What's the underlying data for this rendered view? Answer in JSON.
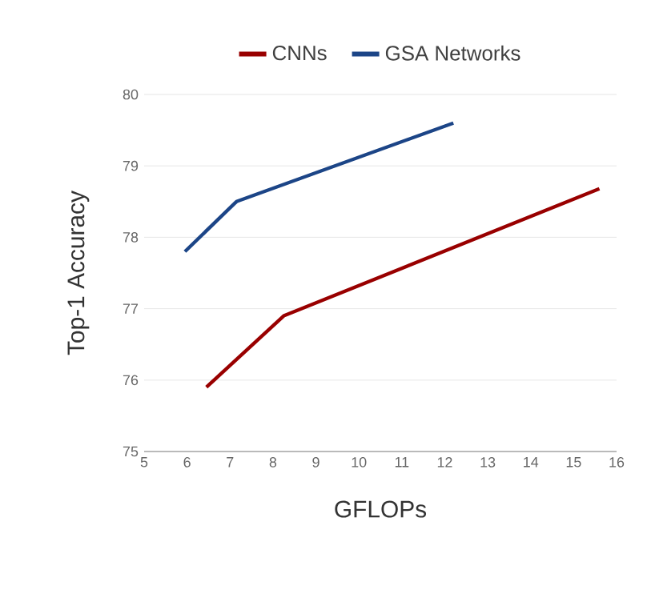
{
  "chart_data": {
    "type": "line",
    "xlabel": "GFLOPs",
    "ylabel": "Top-1 Accuracy",
    "series": [
      {
        "name": "CNNs",
        "color": "#990000",
        "x": [
          6.45,
          8.25,
          15.6
        ],
        "values": [
          75.9,
          76.9,
          78.68
        ]
      },
      {
        "name": "GSA Networks",
        "color": "#1c4587",
        "x": [
          5.95,
          7.15,
          12.2
        ],
        "values": [
          77.8,
          78.5,
          79.6
        ]
      }
    ],
    "xlim": [
      5,
      16
    ],
    "xticks": [
      5,
      6,
      7,
      8,
      9,
      10,
      11,
      12,
      13,
      14,
      15,
      16
    ],
    "ylim": [
      75,
      80
    ],
    "yticks": [
      75,
      76,
      77,
      78,
      79,
      80
    ],
    "grid": "y",
    "legend": "top",
    "marker": "none",
    "line_style": "solid"
  }
}
